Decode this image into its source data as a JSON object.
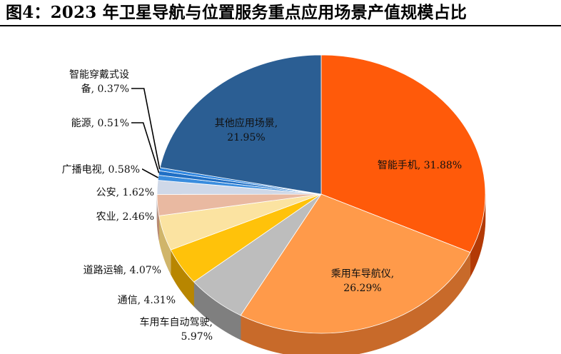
{
  "header": {
    "title": "图4：2023 年卫星导航与位置服务重点应用场景产值规模占比"
  },
  "chart_data": {
    "type": "pie",
    "title": "图4：2023 年卫星导航与位置服务重点应用场景产值规模占比",
    "unit": "%",
    "slices": [
      {
        "label": "智能手机",
        "value": 31.88,
        "display": "智能手机, 31.88%",
        "color": "#FF5A0A",
        "side_color": "#B33A06",
        "label_position": "inside"
      },
      {
        "label": "乘用车导航仪",
        "value": 26.29,
        "display": "乘用车导航仪,\n26.29%",
        "color": "#FF9A4A",
        "side_color": "#C86A2A",
        "label_position": "inside"
      },
      {
        "label": "车用车自动驾驶",
        "value": 5.97,
        "display": "车用车自动驾驶,\n5.97%",
        "color": "#BDBDBD",
        "side_color": "#7F7F7F",
        "label_position": "outside"
      },
      {
        "label": "通信",
        "value": 4.31,
        "display": "通信, 4.31%",
        "color": "#FFC20A",
        "side_color": "#B88600",
        "label_position": "outside"
      },
      {
        "label": "道路运输",
        "value": 4.07,
        "display": "道路运输, 4.07%",
        "color": "#FBE3A1",
        "side_color": "#D0B56A",
        "label_position": "outside"
      },
      {
        "label": "农业",
        "value": 2.46,
        "display": "农业, 2.46%",
        "color": "#E9B9A1",
        "side_color": "#B98A72",
        "label_position": "outside"
      },
      {
        "label": "公安",
        "value": 1.62,
        "display": "公安, 1.62%",
        "color": "#CFD8E8",
        "side_color": "#9FA8B8",
        "label_position": "outside"
      },
      {
        "label": "广播电视",
        "value": 0.58,
        "display": "广播电视, 0.58%",
        "color": "#3A8DDE",
        "side_color": "#2565A6",
        "label_position": "outside"
      },
      {
        "label": "能源",
        "value": 0.51,
        "display": "能源, 0.51%",
        "color": "#1F6FC5",
        "side_color": "#154E8C",
        "label_position": "outside"
      },
      {
        "label": "智能穿戴式设备",
        "value": 0.37,
        "display": "智能穿戴式设\n备, 0.37%",
        "color": "#2E86E0",
        "side_color": "#1E5EA0",
        "label_position": "outside"
      },
      {
        "label": "其他应用场景",
        "value": 21.95,
        "display": "其他应用场景,\n21.95%",
        "color": "#2B5E93",
        "side_color": "#1C3F63",
        "label_position": "inside"
      }
    ]
  }
}
